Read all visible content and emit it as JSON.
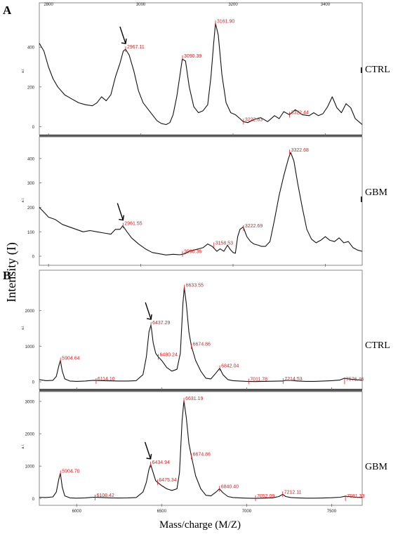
{
  "figure": {
    "y_axis_label": "Intensity (I)",
    "x_axis_label": "Mass/charge (M/Z)"
  },
  "chart_data": [
    {
      "type": "line",
      "panel": "A",
      "condition": "CTRL",
      "xlim": [
        2780,
        3480
      ],
      "ylim": [
        -20,
        560
      ],
      "x_ticks": [
        "2800",
        "3000",
        "3200",
        "3400"
      ],
      "y_ticks": [
        "0",
        "200",
        "400"
      ],
      "y_unit": "a.i.",
      "arrow_at": 2967.11,
      "peaks": [
        {
          "x": 2967.11,
          "y": 390,
          "label": "2967.11"
        },
        {
          "x": 3090.39,
          "y": 345,
          "label": "3090.39"
        },
        {
          "x": 3161.9,
          "y": 520,
          "label": "3161.90"
        },
        {
          "x": 3222.63,
          "y": 25,
          "label": "3222.63"
        },
        {
          "x": 3322.44,
          "y": 60,
          "label": "3322.44"
        }
      ],
      "series": [
        {
          "x": [
            2780,
            2790,
            2800,
            2810,
            2820,
            2835,
            2850,
            2865,
            2880,
            2895,
            2905,
            2915,
            2925,
            2935,
            2945,
            2955,
            2962,
            2967,
            2975,
            2985,
            2995,
            3005,
            3015,
            3025,
            3035,
            3045,
            3055,
            3063,
            3070,
            3078,
            3085,
            3090,
            3097,
            3105,
            3115,
            3125,
            3135,
            3145,
            3152,
            3158,
            3162,
            3168,
            3176,
            3185,
            3195,
            3205,
            3215,
            3222,
            3232,
            3245,
            3260,
            3275,
            3290,
            3300,
            3310,
            3322,
            3335,
            3350,
            3365,
            3375,
            3385,
            3395,
            3405,
            3415,
            3425,
            3435,
            3445,
            3455,
            3465,
            3475,
            3480
          ],
          "y": [
            420,
            380,
            300,
            240,
            200,
            160,
            140,
            120,
            110,
            105,
            120,
            150,
            130,
            160,
            250,
            320,
            380,
            390,
            360,
            280,
            180,
            120,
            90,
            60,
            30,
            15,
            10,
            20,
            60,
            150,
            260,
            340,
            330,
            200,
            100,
            70,
            80,
            110,
            250,
            420,
            520,
            460,
            260,
            120,
            70,
            60,
            40,
            25,
            20,
            35,
            45,
            25,
            55,
            40,
            75,
            60,
            85,
            60,
            55,
            70,
            55,
            65,
            100,
            150,
            95,
            70,
            115,
            95,
            40,
            20,
            10
          ]
        }
      ]
    },
    {
      "type": "line",
      "panel": "A",
      "condition": "GBM",
      "xlim": [
        2780,
        3480
      ],
      "ylim": [
        -20,
        460
      ],
      "x_ticks": [
        "2800",
        "3000",
        "3200",
        "3400"
      ],
      "y_ticks": [
        "0",
        "100",
        "200",
        "300",
        "400"
      ],
      "y_unit": "a.i.",
      "arrow_at": 2961.55,
      "peaks": [
        {
          "x": 2961.55,
          "y": 125,
          "label": "2961.55"
        },
        {
          "x": 3090.36,
          "y": 10,
          "label": "3090.36"
        },
        {
          "x": 3158.53,
          "y": 45,
          "label": "3158.53"
        },
        {
          "x": 3222.69,
          "y": 115,
          "label": "3222.69"
        },
        {
          "x": 3322.68,
          "y": 425,
          "label": "3322.68"
        }
      ],
      "series": [
        {
          "x": [
            2780,
            2790,
            2800,
            2815,
            2830,
            2845,
            2860,
            2875,
            2890,
            2905,
            2920,
            2935,
            2945,
            2955,
            2961,
            2970,
            2980,
            2995,
            3010,
            3025,
            3040,
            3055,
            3070,
            3085,
            3095,
            3105,
            3115,
            3125,
            3135,
            3145,
            3155,
            3165,
            3172,
            3180,
            3188,
            3195,
            3200,
            3205,
            3210,
            3215,
            3222,
            3230,
            3238,
            3245,
            3255,
            3262,
            3270,
            3280,
            3290,
            3300,
            3310,
            3320,
            3325,
            3332,
            3340,
            3350,
            3360,
            3370,
            3380,
            3390,
            3400,
            3410,
            3420,
            3430,
            3440,
            3450,
            3460,
            3470,
            3480
          ],
          "y": [
            200,
            180,
            160,
            150,
            130,
            120,
            110,
            100,
            105,
            100,
            95,
            90,
            110,
            110,
            125,
            100,
            75,
            50,
            30,
            15,
            10,
            5,
            8,
            6,
            10,
            20,
            25,
            30,
            35,
            50,
            40,
            20,
            30,
            20,
            45,
            25,
            15,
            12,
            80,
            110,
            120,
            80,
            60,
            50,
            45,
            40,
            40,
            60,
            150,
            250,
            330,
            400,
            425,
            390,
            300,
            200,
            110,
            70,
            55,
            65,
            80,
            65,
            60,
            75,
            55,
            60,
            35,
            25,
            20
          ]
        }
      ]
    },
    {
      "type": "line",
      "panel": "B",
      "condition": "CTRL",
      "xlim": [
        5780,
        7680
      ],
      "ylim": [
        -80,
        3000
      ],
      "x_ticks": [
        "6000",
        "6500",
        "7000",
        "7500"
      ],
      "y_ticks": [
        "0",
        "1000",
        "2000"
      ],
      "y_unit": "a.i.",
      "arrow_at": 6437.29,
      "peaks": [
        {
          "x": 5904.64,
          "y": 600,
          "label": "5904.64"
        },
        {
          "x": 6114.1,
          "y": 20,
          "label": "6114.10"
        },
        {
          "x": 6437.29,
          "y": 1600,
          "label": "6437.29"
        },
        {
          "x": 6480.24,
          "y": 700,
          "label": "6480.24"
        },
        {
          "x": 6633.55,
          "y": 2650,
          "label": "6633.55"
        },
        {
          "x": 6674.86,
          "y": 1000,
          "label": "6674.86"
        },
        {
          "x": 6842.04,
          "y": 380,
          "label": "6842.04"
        },
        {
          "x": 7011.78,
          "y": 10,
          "label": "7011.78"
        },
        {
          "x": 7214.53,
          "y": 20,
          "label": "7214.53"
        },
        {
          "x": 7576.46,
          "y": 10,
          "label": "7576.46"
        }
      ],
      "series": [
        {
          "x": [
            5780,
            5820,
            5860,
            5880,
            5895,
            5904,
            5915,
            5930,
            5960,
            6000,
            6050,
            6100,
            6150,
            6200,
            6250,
            6300,
            6350,
            6390,
            6410,
            6425,
            6437,
            6450,
            6465,
            6480,
            6500,
            6530,
            6560,
            6590,
            6610,
            6625,
            6633,
            6645,
            6660,
            6675,
            6700,
            6730,
            6760,
            6790,
            6820,
            6842,
            6860,
            6890,
            6920,
            6960,
            7000,
            7050,
            7100,
            7150,
            7200,
            7214,
            7230,
            7260,
            7300,
            7350,
            7400,
            7450,
            7500,
            7550,
            7576,
            7600,
            7640,
            7680
          ],
          "y": [
            60,
            30,
            40,
            150,
            450,
            600,
            300,
            80,
            20,
            10,
            20,
            40,
            30,
            25,
            20,
            20,
            30,
            200,
            700,
            1400,
            1600,
            1100,
            800,
            700,
            600,
            400,
            300,
            350,
            800,
            2200,
            2650,
            2200,
            1400,
            1000,
            600,
            300,
            100,
            80,
            250,
            380,
            200,
            60,
            30,
            20,
            10,
            5,
            10,
            15,
            20,
            20,
            40,
            40,
            20,
            10,
            10,
            20,
            30,
            50,
            100,
            80,
            60,
            40
          ]
        }
      ]
    },
    {
      "type": "line",
      "panel": "B",
      "condition": "GBM",
      "xlim": [
        5780,
        7680
      ],
      "ylim": [
        -80,
        3150
      ],
      "x_ticks": [
        "6000",
        "6500",
        "7000",
        "7500"
      ],
      "y_ticks": [
        "0",
        "1000",
        "2000",
        "3000"
      ],
      "y_unit": "a.i.",
      "arrow_at": 6434.94,
      "peaks": [
        {
          "x": 5904.7,
          "y": 780,
          "label": "5904.70"
        },
        {
          "x": 6108.42,
          "y": 30,
          "label": "6108.42"
        },
        {
          "x": 6434.94,
          "y": 1050,
          "label": "6434.94"
        },
        {
          "x": 6475.34,
          "y": 500,
          "label": "6475.34"
        },
        {
          "x": 6631.19,
          "y": 3020,
          "label": "6631.19"
        },
        {
          "x": 6674.86,
          "y": 1300,
          "label": "6674.86"
        },
        {
          "x": 6840.4,
          "y": 300,
          "label": "6840.40"
        },
        {
          "x": 7052.09,
          "y": 10,
          "label": "7052.09"
        },
        {
          "x": 7212.11,
          "y": 130,
          "label": "7212.11"
        },
        {
          "x": 7581.33,
          "y": 10,
          "label": "7581.33"
        }
      ],
      "series": [
        {
          "x": [
            5780,
            5820,
            5860,
            5880,
            5895,
            5904,
            5915,
            5930,
            5960,
            6000,
            6050,
            6100,
            6150,
            6200,
            6250,
            6300,
            6350,
            6390,
            6410,
            6425,
            6435,
            6450,
            6465,
            6475,
            6500,
            6530,
            6560,
            6590,
            6605,
            6620,
            6631,
            6645,
            6660,
            6675,
            6700,
            6730,
            6760,
            6790,
            6820,
            6840,
            6860,
            6890,
            6920,
            6960,
            7000,
            7050,
            7100,
            7150,
            7190,
            7212,
            7230,
            7260,
            7300,
            7350,
            7400,
            7450,
            7500,
            7550,
            7581,
            7600,
            7640,
            7680
          ],
          "y": [
            40,
            30,
            50,
            200,
            600,
            780,
            350,
            80,
            20,
            10,
            20,
            40,
            30,
            20,
            15,
            20,
            30,
            200,
            500,
            900,
            1050,
            800,
            550,
            500,
            400,
            300,
            250,
            300,
            800,
            2400,
            3020,
            2500,
            1700,
            1300,
            700,
            300,
            100,
            80,
            200,
            300,
            180,
            60,
            30,
            20,
            10,
            5,
            10,
            20,
            60,
            130,
            60,
            30,
            20,
            10,
            10,
            15,
            25,
            40,
            70,
            60,
            40,
            30
          ]
        }
      ]
    }
  ],
  "panels": {
    "A": {
      "letter": "A",
      "ctrl_label": "CTRL",
      "gbm_label": "GBM"
    },
    "B": {
      "letter": "B",
      "ctrl_label": "CTRL",
      "gbm_label": "GBM"
    }
  }
}
